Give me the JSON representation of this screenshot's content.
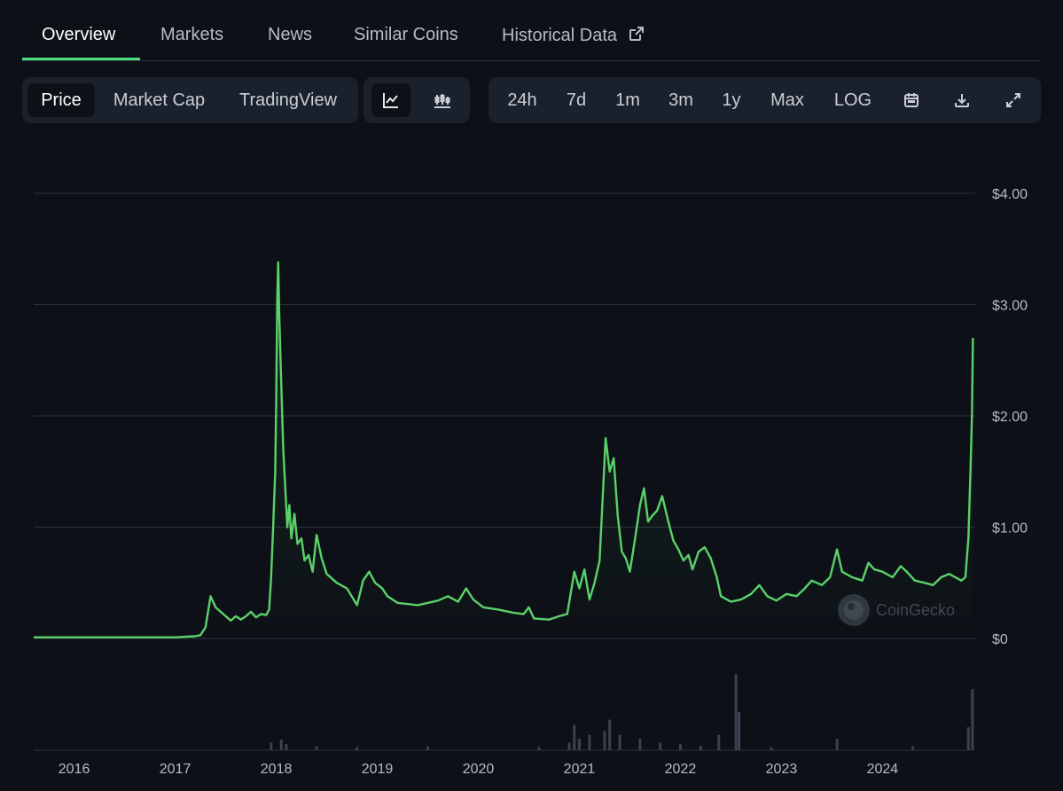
{
  "tabs": [
    {
      "label": "Overview"
    },
    {
      "label": "Markets"
    },
    {
      "label": "News"
    },
    {
      "label": "Similar Coins"
    },
    {
      "label": "Historical Data"
    }
  ],
  "toolbar": {
    "chart_modes": [
      "Price",
      "Market Cap",
      "TradingView"
    ],
    "active_mode": "Price",
    "chart_styles": {
      "line": "line-chart-icon",
      "candle": "candlestick-icon"
    },
    "ranges": [
      "24h",
      "7d",
      "1m",
      "3m",
      "1y",
      "Max",
      "LOG"
    ],
    "tools": [
      "calendar-icon",
      "download-icon",
      "expand-icon"
    ]
  },
  "watermark": "CoinGecko",
  "colors": {
    "line": "#5bd16a",
    "grid": "#2a3140",
    "volume": "#3a4150"
  },
  "chart_data": {
    "type": "line",
    "y_ticks": [
      "$0",
      "$1.00",
      "$2.00",
      "$3.00",
      "$4.00"
    ],
    "ylim": [
      0,
      4
    ],
    "x_ticks": [
      "2016",
      "2017",
      "2018",
      "2019",
      "2020",
      "2021",
      "2022",
      "2023",
      "2024"
    ],
    "xlim": [
      2015.6,
      2024.9
    ],
    "series": [
      {
        "points": [
          [
            2015.6,
            0.01
          ],
          [
            2016.0,
            0.01
          ],
          [
            2016.5,
            0.01
          ],
          [
            2017.0,
            0.01
          ],
          [
            2017.2,
            0.02
          ],
          [
            2017.25,
            0.03
          ],
          [
            2017.3,
            0.1
          ],
          [
            2017.35,
            0.38
          ],
          [
            2017.4,
            0.28
          ],
          [
            2017.45,
            0.24
          ],
          [
            2017.5,
            0.2
          ],
          [
            2017.55,
            0.16
          ],
          [
            2017.6,
            0.2
          ],
          [
            2017.65,
            0.17
          ],
          [
            2017.7,
            0.2
          ],
          [
            2017.75,
            0.24
          ],
          [
            2017.8,
            0.19
          ],
          [
            2017.85,
            0.22
          ],
          [
            2017.9,
            0.21
          ],
          [
            2017.93,
            0.26
          ],
          [
            2017.95,
            0.55
          ],
          [
            2017.97,
            1.0
          ],
          [
            2017.99,
            1.5
          ],
          [
            2018.0,
            2.1
          ],
          [
            2018.01,
            3.05
          ],
          [
            2018.02,
            3.38
          ],
          [
            2018.03,
            2.9
          ],
          [
            2018.05,
            2.3
          ],
          [
            2018.07,
            1.7
          ],
          [
            2018.09,
            1.35
          ],
          [
            2018.11,
            1.0
          ],
          [
            2018.13,
            1.2
          ],
          [
            2018.15,
            0.9
          ],
          [
            2018.18,
            1.12
          ],
          [
            2018.21,
            0.85
          ],
          [
            2018.25,
            0.9
          ],
          [
            2018.28,
            0.7
          ],
          [
            2018.32,
            0.75
          ],
          [
            2018.36,
            0.6
          ],
          [
            2018.4,
            0.93
          ],
          [
            2018.45,
            0.72
          ],
          [
            2018.5,
            0.58
          ],
          [
            2018.6,
            0.5
          ],
          [
            2018.7,
            0.45
          ],
          [
            2018.8,
            0.3
          ],
          [
            2018.86,
            0.52
          ],
          [
            2018.92,
            0.6
          ],
          [
            2018.98,
            0.5
          ],
          [
            2019.05,
            0.45
          ],
          [
            2019.1,
            0.38
          ],
          [
            2019.2,
            0.32
          ],
          [
            2019.4,
            0.3
          ],
          [
            2019.6,
            0.34
          ],
          [
            2019.7,
            0.38
          ],
          [
            2019.8,
            0.33
          ],
          [
            2019.88,
            0.45
          ],
          [
            2019.95,
            0.35
          ],
          [
            2020.05,
            0.28
          ],
          [
            2020.2,
            0.26
          ],
          [
            2020.35,
            0.23
          ],
          [
            2020.45,
            0.22
          ],
          [
            2020.5,
            0.28
          ],
          [
            2020.55,
            0.18
          ],
          [
            2020.7,
            0.17
          ],
          [
            2020.8,
            0.2
          ],
          [
            2020.88,
            0.22
          ],
          [
            2020.95,
            0.6
          ],
          [
            2021.0,
            0.45
          ],
          [
            2021.05,
            0.62
          ],
          [
            2021.1,
            0.35
          ],
          [
            2021.15,
            0.5
          ],
          [
            2021.2,
            0.7
          ],
          [
            2021.26,
            1.8
          ],
          [
            2021.3,
            1.5
          ],
          [
            2021.34,
            1.62
          ],
          [
            2021.38,
            1.1
          ],
          [
            2021.42,
            0.78
          ],
          [
            2021.46,
            0.72
          ],
          [
            2021.5,
            0.6
          ],
          [
            2021.56,
            0.95
          ],
          [
            2021.6,
            1.2
          ],
          [
            2021.64,
            1.35
          ],
          [
            2021.68,
            1.05
          ],
          [
            2021.72,
            1.1
          ],
          [
            2021.77,
            1.15
          ],
          [
            2021.82,
            1.28
          ],
          [
            2021.88,
            1.05
          ],
          [
            2021.93,
            0.88
          ],
          [
            2021.98,
            0.8
          ],
          [
            2022.03,
            0.7
          ],
          [
            2022.08,
            0.75
          ],
          [
            2022.12,
            0.62
          ],
          [
            2022.18,
            0.78
          ],
          [
            2022.24,
            0.82
          ],
          [
            2022.3,
            0.72
          ],
          [
            2022.36,
            0.55
          ],
          [
            2022.4,
            0.38
          ],
          [
            2022.5,
            0.33
          ],
          [
            2022.6,
            0.35
          ],
          [
            2022.7,
            0.4
          ],
          [
            2022.78,
            0.48
          ],
          [
            2022.86,
            0.38
          ],
          [
            2022.95,
            0.34
          ],
          [
            2023.05,
            0.4
          ],
          [
            2023.15,
            0.38
          ],
          [
            2023.22,
            0.44
          ],
          [
            2023.3,
            0.52
          ],
          [
            2023.4,
            0.48
          ],
          [
            2023.48,
            0.55
          ],
          [
            2023.55,
            0.8
          ],
          [
            2023.6,
            0.6
          ],
          [
            2023.7,
            0.55
          ],
          [
            2023.8,
            0.52
          ],
          [
            2023.86,
            0.68
          ],
          [
            2023.92,
            0.62
          ],
          [
            2024.0,
            0.6
          ],
          [
            2024.1,
            0.55
          ],
          [
            2024.18,
            0.65
          ],
          [
            2024.24,
            0.6
          ],
          [
            2024.32,
            0.52
          ],
          [
            2024.42,
            0.5
          ],
          [
            2024.5,
            0.48
          ],
          [
            2024.58,
            0.55
          ],
          [
            2024.66,
            0.58
          ],
          [
            2024.72,
            0.55
          ],
          [
            2024.78,
            0.52
          ],
          [
            2024.82,
            0.55
          ],
          [
            2024.85,
            0.9
          ],
          [
            2024.87,
            1.5
          ],
          [
            2024.885,
            2.0
          ],
          [
            2024.895,
            2.7
          ]
        ]
      }
    ],
    "volume": [
      [
        2017.95,
        0.1
      ],
      [
        2018.05,
        0.14
      ],
      [
        2018.1,
        0.08
      ],
      [
        2018.4,
        0.05
      ],
      [
        2018.8,
        0.04
      ],
      [
        2019.5,
        0.05
      ],
      [
        2020.6,
        0.04
      ],
      [
        2020.9,
        0.1
      ],
      [
        2020.95,
        0.33
      ],
      [
        2021.0,
        0.15
      ],
      [
        2021.1,
        0.2
      ],
      [
        2021.25,
        0.25
      ],
      [
        2021.3,
        0.4
      ],
      [
        2021.4,
        0.2
      ],
      [
        2021.6,
        0.15
      ],
      [
        2021.8,
        0.1
      ],
      [
        2022.0,
        0.08
      ],
      [
        2022.2,
        0.06
      ],
      [
        2022.38,
        0.2
      ],
      [
        2022.55,
        1.0
      ],
      [
        2022.58,
        0.5
      ],
      [
        2022.9,
        0.04
      ],
      [
        2023.55,
        0.15
      ],
      [
        2024.3,
        0.05
      ],
      [
        2024.85,
        0.3
      ],
      [
        2024.89,
        0.8
      ]
    ],
    "grid": true
  }
}
